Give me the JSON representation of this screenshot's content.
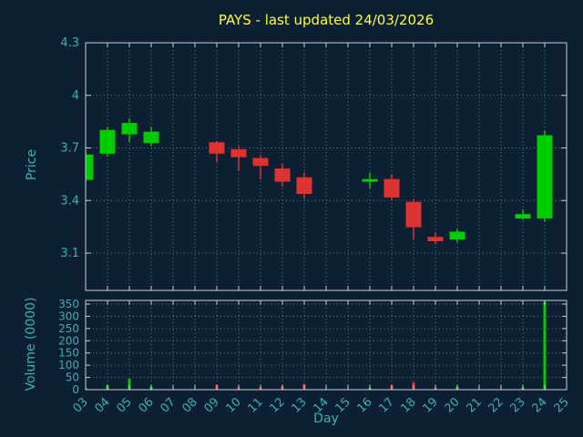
{
  "title": "PAYS - last updated 24/03/2026",
  "colors": {
    "background": "#0d1f33",
    "up": "#00cc00",
    "down": "#dd3333",
    "axis": "#c8d0d8",
    "grid": "#6b7b8d",
    "tick_text": "#3db0b0",
    "title": "#ffff33"
  },
  "chart_data": {
    "type": "candlestick",
    "title": "PAYS - last updated 24/03/2026",
    "xlabel": "Day",
    "ylabel_price": "Price",
    "ylabel_volume": "Volume (0000)",
    "grid": true,
    "legend": "none",
    "x_ticks": [
      "03",
      "04",
      "05",
      "06",
      "07",
      "08",
      "09",
      "10",
      "11",
      "12",
      "13",
      "14",
      "15",
      "16",
      "17",
      "18",
      "19",
      "20",
      "21",
      "22",
      "23",
      "24",
      "25"
    ],
    "price_ticks": [
      "3.1",
      "3.4",
      "3.7",
      "4",
      "4.3"
    ],
    "volume_ticks": [
      "0",
      "50",
      "100",
      "150",
      "200",
      "250",
      "300",
      "350"
    ],
    "ylim_price": [
      3.1,
      4.3
    ],
    "ylim_volume": [
      0,
      350
    ],
    "candles": [
      {
        "day": 3,
        "open": 3.52,
        "high": 3.68,
        "low": 3.5,
        "close": 3.66,
        "volume": 8
      },
      {
        "day": 4,
        "open": 3.67,
        "high": 3.82,
        "low": 3.65,
        "close": 3.8,
        "volume": 18
      },
      {
        "day": 5,
        "open": 3.78,
        "high": 3.87,
        "low": 3.73,
        "close": 3.84,
        "volume": 45
      },
      {
        "day": 6,
        "open": 3.73,
        "high": 3.82,
        "low": 3.71,
        "close": 3.79,
        "volume": 12
      },
      {
        "day": 9,
        "open": 3.73,
        "high": 3.74,
        "low": 3.62,
        "close": 3.67,
        "volume": 20
      },
      {
        "day": 10,
        "open": 3.69,
        "high": 3.71,
        "low": 3.57,
        "close": 3.65,
        "volume": 10
      },
      {
        "day": 11,
        "open": 3.64,
        "high": 3.66,
        "low": 3.52,
        "close": 3.6,
        "volume": 9
      },
      {
        "day": 12,
        "open": 3.58,
        "high": 3.61,
        "low": 3.48,
        "close": 3.51,
        "volume": 14
      },
      {
        "day": 13,
        "open": 3.53,
        "high": 3.56,
        "low": 3.41,
        "close": 3.44,
        "volume": 24
      },
      {
        "day": 16,
        "open": 3.51,
        "high": 3.56,
        "low": 3.47,
        "close": 3.52,
        "volume": 8
      },
      {
        "day": 17,
        "open": 3.52,
        "high": 3.55,
        "low": 3.4,
        "close": 3.42,
        "volume": 18
      },
      {
        "day": 18,
        "open": 3.39,
        "high": 3.41,
        "low": 3.18,
        "close": 3.25,
        "volume": 30
      },
      {
        "day": 19,
        "open": 3.19,
        "high": 3.22,
        "low": 3.15,
        "close": 3.17,
        "volume": 8
      },
      {
        "day": 20,
        "open": 3.18,
        "high": 3.24,
        "low": 3.16,
        "close": 3.22,
        "volume": 12
      },
      {
        "day": 23,
        "open": 3.3,
        "high": 3.35,
        "low": 3.29,
        "close": 3.32,
        "volume": 9
      },
      {
        "day": 24,
        "open": 3.3,
        "high": 3.8,
        "low": 3.28,
        "close": 3.77,
        "volume": 360
      }
    ]
  }
}
